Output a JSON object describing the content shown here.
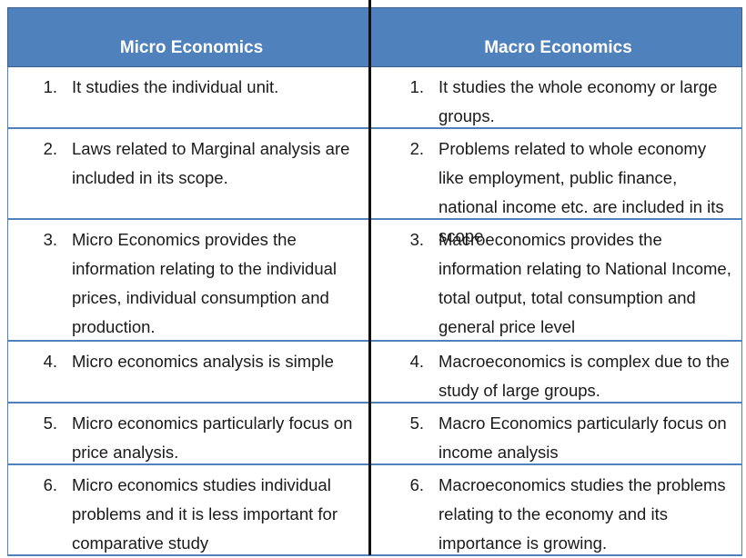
{
  "headers": {
    "left": "Micro Economics",
    "right": "Macro Economics"
  },
  "rows": [
    {
      "left_num": "1.",
      "left": "It studies the individual unit.",
      "right_num": "1.",
      "right": "It studies the whole economy or large groups."
    },
    {
      "left_num": "2.",
      "left": "Laws related to Marginal analysis are included in its scope.",
      "right_num": "2.",
      "right": "Problems related to whole economy like employment, public finance, national income etc. are included in its scope"
    },
    {
      "left_num": "3.",
      "left": "Micro Economics provides the information relating to the individual prices, individual consumption and production.",
      "right_num": "3.",
      "right": "Macroeconomics provides the information relating to National Income, total output, total consumption and general price level"
    },
    {
      "left_num": "4.",
      "left": "Micro economics analysis is simple",
      "right_num": "4.",
      "right": "Macroeconomics is complex due to the study of large groups."
    },
    {
      "left_num": "5.",
      "left": "Micro economics particularly focus on price analysis.",
      "right_num": "5.",
      "right": "Macro Economics particularly focus on income analysis"
    },
    {
      "left_num": "6.",
      "left": "Micro economics studies individual problems and it is less important for comparative study",
      "right_num": "6.",
      "right": "Macroeconomics studies the problems relating to the economy and its importance is growing."
    }
  ],
  "colors": {
    "header_bg": "#4f81bd",
    "header_text": "#ffffff",
    "row_border": "#4f81bd",
    "divider": "#111111"
  }
}
